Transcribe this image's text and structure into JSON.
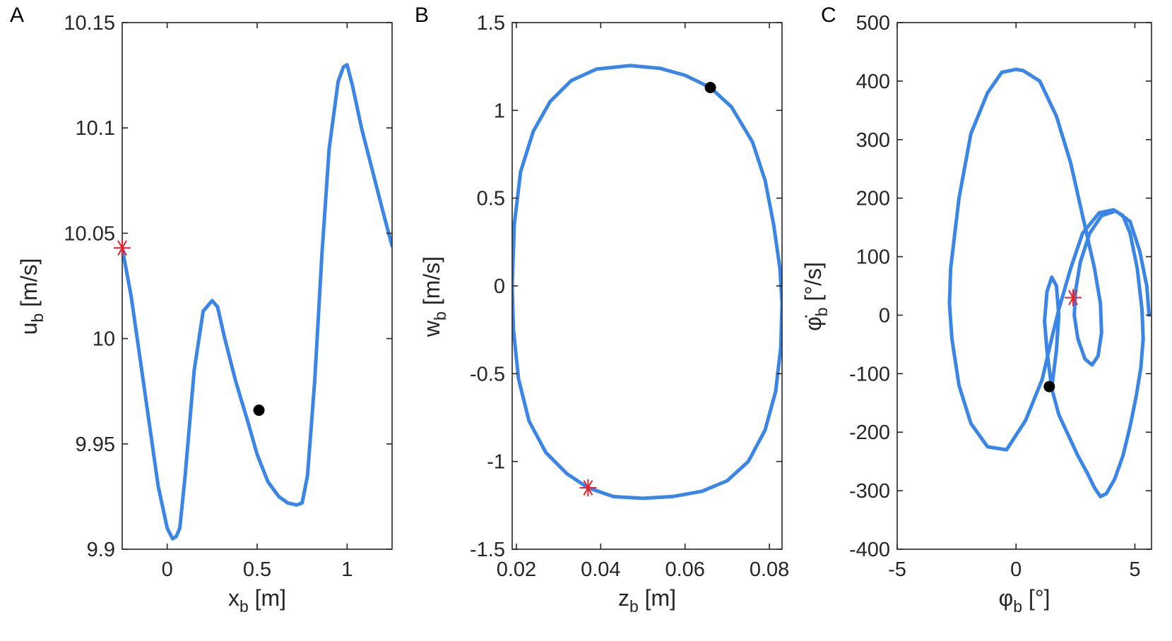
{
  "chart_data": [
    {
      "panel": "A",
      "type": "line",
      "xlabel": "x",
      "xlabel_sub": "b",
      "xlabel_unit": "[m]",
      "ylabel": "u",
      "ylabel_sub": "b",
      "ylabel_unit": "[m/s]",
      "xlim": [
        -0.25,
        1.25
      ],
      "ylim": [
        9.9,
        10.15
      ],
      "xticks": [
        0,
        0.5,
        1
      ],
      "xtick_labels": [
        "0",
        "0.5",
        "1"
      ],
      "yticks": [
        9.9,
        9.95,
        10,
        10.05,
        10.1,
        10.15
      ],
      "ytick_labels": [
        "9.9",
        "9.95",
        "10",
        "10.05",
        "10.1",
        "10.15"
      ],
      "series": [
        {
          "name": "trajectory",
          "x": [
            -0.25,
            -0.2,
            -0.15,
            -0.1,
            -0.05,
            0.0,
            0.03,
            0.05,
            0.07,
            0.1,
            0.15,
            0.2,
            0.25,
            0.28,
            0.32,
            0.38,
            0.45,
            0.5,
            0.56,
            0.62,
            0.67,
            0.72,
            0.75,
            0.78,
            0.82,
            0.86,
            0.9,
            0.95,
            0.98,
            1.0,
            1.03,
            1.08,
            1.14,
            1.2,
            1.25
          ],
          "y": [
            10.043,
            10.02,
            9.99,
            9.96,
            9.93,
            9.91,
            9.905,
            9.906,
            9.91,
            9.935,
            9.985,
            10.013,
            10.018,
            10.015,
            10.0,
            9.98,
            9.96,
            9.945,
            9.932,
            9.925,
            9.922,
            9.921,
            9.922,
            9.935,
            9.98,
            10.04,
            10.09,
            10.122,
            10.129,
            10.13,
            10.12,
            10.1,
            10.08,
            10.06,
            10.044
          ]
        }
      ],
      "markers": [
        {
          "type": "star",
          "color": "#e8212b",
          "x": -0.25,
          "y": 10.043
        },
        {
          "type": "dot",
          "color": "#000000",
          "x": 0.51,
          "y": 9.966
        }
      ]
    },
    {
      "panel": "B",
      "type": "line",
      "xlabel": "z",
      "xlabel_sub": "b",
      "xlabel_unit": "[m]",
      "ylabel": "w",
      "ylabel_sub": "b",
      "ylabel_unit": "[m/s]",
      "xlim": [
        0.019,
        0.083
      ],
      "ylim": [
        -1.5,
        1.5
      ],
      "xticks": [
        0.02,
        0.04,
        0.06,
        0.08
      ],
      "xtick_labels": [
        "0.02",
        "0.04",
        "0.06",
        "0.08"
      ],
      "yticks": [
        -1.5,
        -1,
        -0.5,
        0,
        0.5,
        1,
        1.5
      ],
      "ytick_labels": [
        "-1.5",
        "-1",
        "-0.5",
        "0",
        "0.5",
        "1",
        "1.5"
      ],
      "series": [
        {
          "name": "trajectory",
          "x": [
            0.019,
            0.0195,
            0.021,
            0.024,
            0.028,
            0.033,
            0.039,
            0.047,
            0.054,
            0.06,
            0.066,
            0.071,
            0.076,
            0.079,
            0.081,
            0.0825,
            0.083,
            0.0827,
            0.0815,
            0.079,
            0.075,
            0.07,
            0.064,
            0.057,
            0.05,
            0.043,
            0.037,
            0.032,
            0.027,
            0.023,
            0.0205,
            0.0193,
            0.019
          ],
          "y": [
            0.0,
            0.35,
            0.65,
            0.88,
            1.05,
            1.17,
            1.235,
            1.255,
            1.24,
            1.2,
            1.13,
            1.02,
            0.82,
            0.6,
            0.35,
            0.1,
            -0.1,
            -0.35,
            -0.6,
            -0.82,
            -1.0,
            -1.11,
            -1.17,
            -1.2,
            -1.21,
            -1.2,
            -1.15,
            -1.07,
            -0.95,
            -0.77,
            -0.53,
            -0.25,
            0.0
          ]
        }
      ],
      "markers": [
        {
          "type": "star",
          "color": "#e8212b",
          "x": 0.037,
          "y": -1.15
        },
        {
          "type": "dot",
          "color": "#000000",
          "x": 0.066,
          "y": 1.13
        }
      ]
    },
    {
      "panel": "C",
      "type": "line",
      "xlabel": "φ",
      "xlabel_sub": "b",
      "xlabel_unit": "[°]",
      "ylabel": "φ̇",
      "ylabel_sub": "b",
      "ylabel_unit": "[°/s]",
      "xlim": [
        -5,
        5.7
      ],
      "ylim": [
        -400,
        500
      ],
      "xticks": [
        -5,
        0,
        5
      ],
      "xtick_labels": [
        "-5",
        "0",
        "5"
      ],
      "yticks": [
        -400,
        -300,
        -200,
        -100,
        0,
        100,
        200,
        300,
        400,
        500
      ],
      "ytick_labels": [
        "-400",
        "-300",
        "-200",
        "-100",
        "0",
        "100",
        "200",
        "300",
        "400",
        "500"
      ],
      "series": [
        {
          "name": "trajectory",
          "x": [
            1.5,
            1.7,
            1.8,
            1.7,
            1.5,
            1.3,
            1.2,
            1.3,
            1.5,
            1.8,
            2.2,
            2.6,
            3.0,
            3.3,
            3.55,
            3.8,
            4.15,
            4.5,
            4.8,
            5.05,
            5.25,
            5.35,
            5.3,
            5.1,
            4.8,
            4.5,
            4.1,
            3.5,
            2.8,
            2.3,
            1.8,
            1.5,
            1.1,
            0.4,
            -0.4,
            -1.2,
            -1.9,
            -2.4,
            -2.7,
            -2.8,
            -2.75,
            -2.4,
            -1.9,
            -1.2,
            -0.6,
            0.0,
            0.3,
            1.0,
            1.7,
            2.3,
            2.8,
            3.3,
            3.55,
            3.6,
            3.45,
            3.2,
            2.9,
            2.6,
            2.45,
            2.5,
            2.7,
            3.1,
            3.6,
            4.2,
            4.8,
            5.2,
            5.5,
            5.6
          ],
          "y": [
            -125,
            -60,
            0,
            50,
            65,
            40,
            -10,
            -60,
            -125,
            -170,
            -205,
            -240,
            -270,
            -295,
            -310,
            -305,
            -280,
            -240,
            -190,
            -140,
            -90,
            -40,
            10,
            80,
            140,
            170,
            180,
            175,
            140,
            80,
            10,
            -40,
            -110,
            -180,
            -230,
            -225,
            -185,
            -120,
            -40,
            20,
            80,
            200,
            310,
            380,
            415,
            420,
            418,
            400,
            340,
            260,
            170,
            80,
            20,
            -30,
            -70,
            -85,
            -75,
            -40,
            0,
            40,
            90,
            140,
            170,
            178,
            160,
            110,
            50,
            0
          ]
        }
      ],
      "markers": [
        {
          "type": "star",
          "color": "#e8212b",
          "x": 2.4,
          "y": 30
        },
        {
          "type": "dot",
          "color": "#000000",
          "x": 1.4,
          "y": -122
        }
      ]
    }
  ],
  "panel_letters": [
    "A",
    "B",
    "C"
  ]
}
